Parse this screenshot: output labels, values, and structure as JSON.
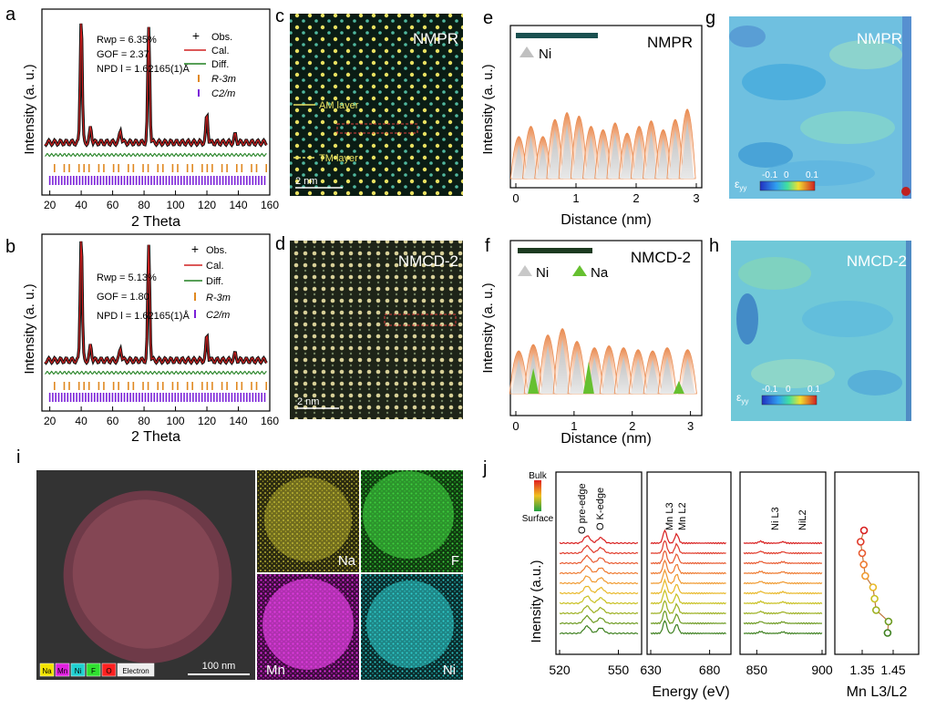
{
  "panels": {
    "a": {
      "letter": "a",
      "ylabel": "Intensity (a. u.)",
      "xlabel": "2 Theta",
      "stats": [
        "Rwp = 6.35%",
        "GOF = 2.37",
        "NPD l = 1.62165(1)Å"
      ],
      "legend": [
        "Obs.",
        "Cal.",
        "Diff.",
        "R-3m",
        "C2/m"
      ]
    },
    "b": {
      "letter": "b",
      "ylabel": "Intensity (a. u.)",
      "xlabel": "2 Theta",
      "stats": [
        "Rwp = 5.13%",
        "GOF = 1.80",
        "NPD l = 1.62165(1)Å"
      ],
      "legend": [
        "Obs.",
        "Cal.",
        "Diff.",
        "R-3m",
        "C2/m"
      ]
    },
    "c": {
      "letter": "c",
      "title": "NMPR",
      "label_am": "AM layer",
      "label_tm": "TM layer",
      "scale": "2 nm"
    },
    "d": {
      "letter": "d",
      "title": "NMCD-2",
      "scale": "2 nm"
    },
    "e": {
      "letter": "e",
      "title": "NMPR",
      "legend": [
        "Ni"
      ],
      "ylabel": "Intensity (a. u.)",
      "xlabel": "Distance (nm)"
    },
    "f": {
      "letter": "f",
      "title": "NMCD-2",
      "legend": [
        "Ni",
        "Na"
      ],
      "ylabel": "Intensity (a. u.)",
      "xlabel": "Distance (nm)"
    },
    "g": {
      "letter": "g",
      "title": "NMPR",
      "strain_label": "ε",
      "strain_sub": "yy",
      "cbar_ticks": [
        "-0.1",
        "0",
        "0.1"
      ]
    },
    "h": {
      "letter": "h",
      "title": "NMCD-2",
      "strain_label": "ε",
      "strain_sub": "yy",
      "cbar_ticks": [
        "-0.1",
        "0",
        "0.1"
      ]
    },
    "i": {
      "letter": "i",
      "scale": "100 nm",
      "maps": [
        "Na",
        "F",
        "Mn",
        "Ni"
      ],
      "legend_chips": [
        {
          "label": "Na",
          "color": "#f2e400"
        },
        {
          "label": "Mn",
          "color": "#e020e0"
        },
        {
          "label": "Ni",
          "color": "#20d0d0"
        },
        {
          "label": "F",
          "color": "#30e030"
        },
        {
          "label": "O",
          "color": "#ff2020"
        },
        {
          "label": "Electron",
          "color": "#eeeeee"
        }
      ]
    },
    "j": {
      "letter": "j",
      "ylabel": "Inensity (a.u.)",
      "xlabel": "Energy (eV)",
      "depth_top": "Bulk",
      "depth_bottom": "Surface",
      "edge_labels": [
        "O pre-edge",
        "O K-edge",
        "Mn L3",
        "Mn L2",
        "Ni L3",
        "NiL2"
      ],
      "ratio_xlabel": "Mn L3/L2"
    }
  },
  "chart_data": [
    {
      "type": "line",
      "panel": "a",
      "title": "",
      "xlabel": "2 Theta",
      "ylabel": "Intensity (a. u.)",
      "xlim": [
        15,
        160
      ],
      "xticks": [
        20,
        40,
        60,
        80,
        100,
        120,
        140,
        160
      ],
      "peaks": [
        [
          40,
          100
        ],
        [
          46,
          12
        ],
        [
          65,
          10
        ],
        [
          83,
          90
        ],
        [
          120,
          22
        ],
        [
          138,
          6
        ]
      ]
    },
    {
      "type": "line",
      "panel": "b",
      "title": "",
      "xlabel": "2 Theta",
      "ylabel": "Intensity (a. u.)",
      "xlim": [
        15,
        160
      ],
      "xticks": [
        20,
        40,
        60,
        80,
        100,
        120,
        140,
        160
      ],
      "peaks": [
        [
          40,
          100
        ],
        [
          46,
          12
        ],
        [
          65,
          10
        ],
        [
          83,
          90
        ],
        [
          120,
          20
        ],
        [
          138,
          5
        ]
      ]
    },
    {
      "type": "area",
      "panel": "e",
      "title": "NMPR",
      "xlabel": "Distance (nm)",
      "ylabel": "Intensity (a. u.)",
      "xlim": [
        0,
        3
      ],
      "xticks": [
        0,
        1,
        2,
        3
      ],
      "ni_peaks_x": [
        0.05,
        0.25,
        0.45,
        0.65,
        0.85,
        1.05,
        1.25,
        1.45,
        1.65,
        1.85,
        2.05,
        2.25,
        2.45,
        2.65,
        2.85
      ],
      "ni_peaks_h": [
        0.55,
        0.7,
        0.55,
        0.8,
        0.9,
        0.85,
        0.7,
        0.65,
        0.75,
        0.6,
        0.7,
        0.78,
        0.65,
        0.8,
        0.95
      ]
    },
    {
      "type": "area",
      "panel": "f",
      "title": "NMCD-2",
      "xlabel": "Distance (nm)",
      "ylabel": "Intensity (a. u.)",
      "xlim": [
        0,
        3.1
      ],
      "xticks": [
        0,
        1,
        2,
        3
      ],
      "ni_peaks_x": [
        0.05,
        0.3,
        0.55,
        0.8,
        1.05,
        1.35,
        1.6,
        1.85,
        2.1,
        2.35,
        2.6,
        2.95
      ],
      "ni_peaks_h": [
        0.6,
        0.7,
        0.85,
        0.95,
        0.75,
        0.65,
        0.68,
        0.65,
        0.62,
        0.6,
        0.65,
        0.62
      ],
      "na_peaks_x": [
        0.3,
        1.25,
        2.8
      ],
      "na_peaks_h": [
        0.2,
        0.25,
        0.1
      ]
    },
    {
      "type": "line",
      "panel": "j",
      "title": "",
      "xlabel": "Energy (eV)",
      "ylabel": "Inensity (a.u.)",
      "segments": [
        {
          "xlim": [
            520,
            560
          ],
          "xticks": [
            520,
            550
          ]
        },
        {
          "xlim": [
            630,
            695
          ],
          "xticks": [
            630,
            680
          ]
        },
        {
          "xlim": [
            840,
            900
          ],
          "xticks": [
            850,
            900
          ]
        }
      ],
      "series_count": 10
    },
    {
      "type": "scatter",
      "panel": "j",
      "title": "",
      "xlabel": "Mn L3/L2",
      "xticks": [
        1.35,
        1.45
      ],
      "x": [
        1.356,
        1.345,
        1.35,
        1.355,
        1.36,
        1.385,
        1.39,
        1.395,
        1.435,
        1.432
      ],
      "depth_index": [
        0,
        1,
        2,
        3,
        4,
        5,
        6,
        7,
        8,
        9
      ]
    }
  ]
}
